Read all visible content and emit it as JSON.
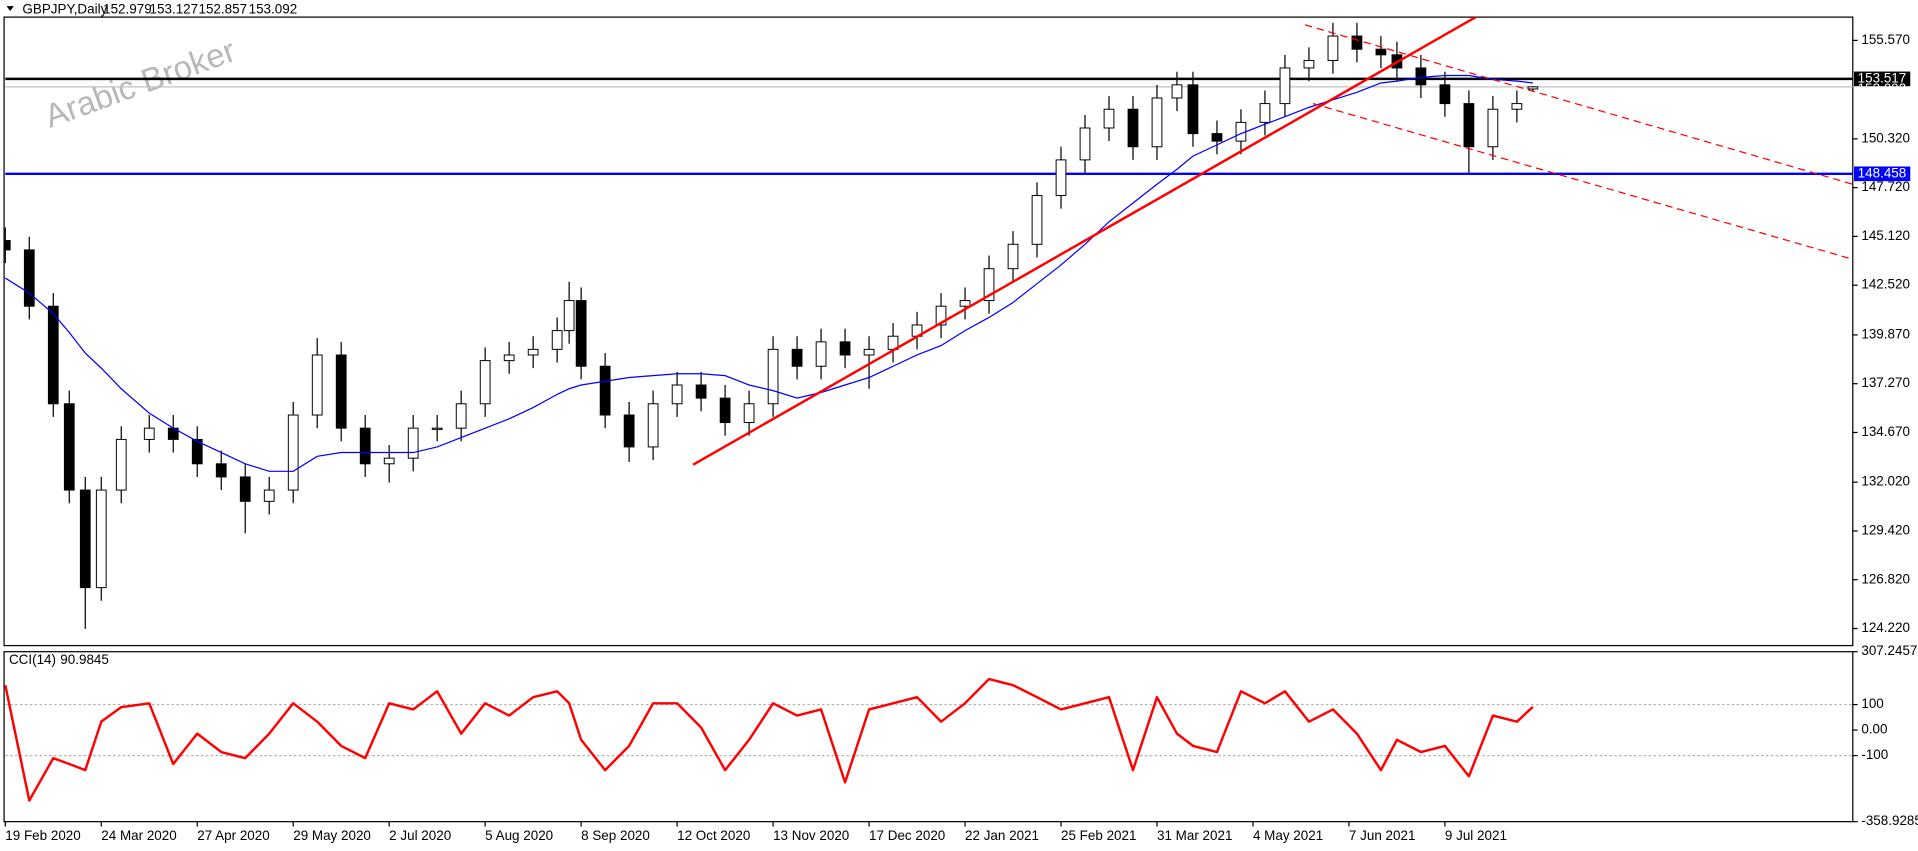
{
  "chart_data": [
    {
      "type": "candlestick",
      "title": "GBPJPY,Daily",
      "watermark": "Arabic Broker",
      "x": [
        0,
        6,
        12,
        16,
        20,
        24,
        29,
        36,
        42,
        48,
        54,
        60,
        66,
        72,
        78,
        84,
        90,
        96,
        102,
        108,
        114,
        120,
        126,
        132,
        138,
        141,
        144,
        150,
        156,
        162,
        168,
        174,
        180,
        186,
        192,
        198,
        204,
        210,
        216,
        222,
        228,
        234,
        240,
        246,
        252,
        258,
        264,
        270,
        276,
        282,
        288,
        293,
        297,
        303,
        309,
        315,
        320,
        326,
        332,
        338,
        344,
        348,
        354,
        360,
        366,
        372,
        378,
        382
      ],
      "open": [
        144.9,
        144.4,
        141.4,
        136.2,
        131.6,
        126.4,
        131.6,
        134.3,
        134.9,
        134.3,
        133.0,
        132.3,
        131.0,
        131.6,
        135.6,
        138.8,
        134.9,
        133.0,
        133.3,
        134.9,
        134.9,
        136.2,
        138.5,
        138.8,
        139.1,
        140.1,
        141.7,
        138.2,
        135.6,
        133.9,
        136.2,
        137.2,
        136.5,
        135.2,
        136.2,
        139.1,
        138.2,
        139.5,
        138.8,
        139.1,
        139.8,
        140.4,
        141.4,
        141.7,
        143.4,
        144.7,
        147.3,
        149.2,
        150.9,
        151.9,
        149.9,
        152.5,
        153.2,
        150.6,
        150.2,
        151.2,
        152.2,
        154.1,
        154.5,
        155.8,
        155.1,
        154.8,
        154.1,
        153.2,
        152.2,
        149.9,
        151.9,
        152.979
      ],
      "high": [
        145.6,
        145.1,
        142.1,
        136.9,
        132.3,
        132.3,
        135.0,
        135.6,
        135.6,
        135.0,
        133.7,
        133.0,
        132.3,
        136.3,
        139.7,
        139.5,
        135.6,
        134.0,
        135.6,
        135.6,
        136.9,
        139.2,
        139.5,
        139.8,
        140.8,
        142.7,
        142.4,
        138.9,
        136.3,
        136.9,
        137.9,
        137.9,
        137.2,
        136.9,
        139.8,
        139.8,
        140.2,
        140.2,
        139.8,
        140.5,
        141.1,
        142.1,
        142.4,
        144.1,
        145.4,
        148.0,
        149.9,
        151.6,
        152.6,
        152.6,
        153.2,
        153.9,
        153.9,
        151.3,
        151.9,
        152.9,
        154.8,
        155.2,
        156.5,
        156.5,
        155.8,
        155.5,
        154.8,
        153.9,
        152.9,
        152.6,
        152.9,
        153.127
      ],
      "low": [
        143.7,
        140.7,
        135.5,
        130.9,
        124.2,
        125.7,
        130.9,
        133.6,
        133.6,
        132.3,
        131.6,
        129.3,
        130.3,
        130.9,
        134.9,
        134.2,
        132.3,
        132.0,
        132.6,
        134.2,
        134.2,
        135.5,
        137.8,
        138.1,
        138.4,
        139.4,
        137.5,
        134.9,
        133.1,
        133.2,
        135.5,
        135.8,
        134.5,
        134.5,
        135.5,
        137.5,
        137.5,
        138.1,
        137.0,
        138.4,
        139.1,
        139.7,
        140.7,
        141.0,
        142.7,
        144.0,
        146.6,
        148.5,
        150.2,
        149.2,
        149.2,
        151.8,
        149.9,
        149.5,
        149.5,
        150.5,
        151.5,
        153.4,
        153.8,
        154.4,
        154.1,
        153.4,
        152.5,
        151.5,
        148.5,
        149.2,
        151.2,
        152.857
      ],
      "close": [
        144.4,
        141.4,
        136.2,
        131.6,
        126.4,
        131.6,
        134.3,
        134.9,
        134.3,
        133.0,
        132.3,
        131.0,
        131.6,
        135.6,
        138.8,
        134.9,
        133.0,
        133.3,
        134.9,
        134.9,
        136.2,
        138.5,
        138.8,
        139.1,
        140.1,
        141.7,
        138.2,
        135.6,
        133.9,
        136.2,
        137.2,
        136.5,
        135.2,
        136.2,
        139.1,
        138.2,
        139.5,
        138.8,
        139.1,
        139.8,
        140.4,
        141.4,
        141.7,
        143.4,
        144.7,
        147.3,
        149.2,
        150.9,
        151.9,
        149.9,
        152.5,
        153.2,
        150.6,
        150.2,
        151.2,
        152.2,
        154.1,
        154.5,
        155.8,
        155.1,
        154.8,
        154.1,
        153.2,
        152.2,
        149.9,
        151.9,
        152.2,
        153.092
      ],
      "ma": {
        "color": "#0000ff",
        "values": [
          142.9,
          142.1,
          141.0,
          140.0,
          138.9,
          138.1,
          137.0,
          135.7,
          134.9,
          134.2,
          133.6,
          133.0,
          132.6,
          132.6,
          133.4,
          133.6,
          133.6,
          133.6,
          133.6,
          133.9,
          134.4,
          134.9,
          135.4,
          136.0,
          136.7,
          137.0,
          137.2,
          137.4,
          137.6,
          137.7,
          137.8,
          137.8,
          137.7,
          137.2,
          136.9,
          136.5,
          136.8,
          137.2,
          137.6,
          138.2,
          138.8,
          139.3,
          140.1,
          140.8,
          141.6,
          142.6,
          143.6,
          144.7,
          145.9,
          146.9,
          147.9,
          148.7,
          149.4,
          150.0,
          150.6,
          151.1,
          151.5,
          152.0,
          152.4,
          152.8,
          153.3,
          153.4,
          153.6,
          153.7,
          153.7,
          153.5,
          153.4,
          153.3
        ]
      },
      "up_color": "#ffffff",
      "down_color": "#000000",
      "xlim": [
        0,
        462
      ],
      "xticks": [
        {
          "value": 0,
          "label": "19 Feb 2020"
        },
        {
          "value": 24,
          "label": "24 Mar 2020"
        },
        {
          "value": 48,
          "label": "27 Apr 2020"
        },
        {
          "value": 72,
          "label": "29 May 2020"
        },
        {
          "value": 96,
          "label": "2 Jul 2020"
        },
        {
          "value": 120,
          "label": "5 Aug 2020"
        },
        {
          "value": 144,
          "label": "8 Sep 2020"
        },
        {
          "value": 168,
          "label": "12 Oct 2020"
        },
        {
          "value": 192,
          "label": "13 Nov 2020"
        },
        {
          "value": 216,
          "label": "17 Dec 2020"
        },
        {
          "value": 240,
          "label": "22 Jan 2021"
        },
        {
          "value": 264,
          "label": "25 Feb 2021"
        },
        {
          "value": 288,
          "label": "31 Mar 2021"
        },
        {
          "value": 312,
          "label": "4 May 2021"
        },
        {
          "value": 336,
          "label": "7 Jun 2021"
        },
        {
          "value": 360,
          "label": "9 Jul 2021"
        }
      ],
      "ylim": [
        123.31,
        156.81
      ],
      "yticks": [
        {
          "value": 155.57,
          "label": "155.570"
        },
        {
          "value": 150.32,
          "label": "150.320"
        },
        {
          "value": 147.72,
          "label": "147.720"
        },
        {
          "value": 145.12,
          "label": "145.120"
        },
        {
          "value": 142.52,
          "label": "142.520"
        },
        {
          "value": 139.87,
          "label": "139.870"
        },
        {
          "value": 137.27,
          "label": "137.270"
        },
        {
          "value": 134.67,
          "label": "134.670"
        },
        {
          "value": 132.02,
          "label": "132.020"
        },
        {
          "value": 129.42,
          "label": "129.420"
        },
        {
          "value": 126.82,
          "label": "126.820"
        },
        {
          "value": 124.22,
          "label": "124.220"
        }
      ],
      "hlines": [
        {
          "value": 153.517,
          "color": "#000000"
        },
        {
          "value": 148.458,
          "color": "#0000ff"
        }
      ],
      "trendlines": [
        {
          "x1": 172,
          "y1": 132.95,
          "x2": 375,
          "y2": 157.7,
          "color": "#ff0000",
          "dashed": false
        },
        {
          "x1": 325,
          "y1": 156.4,
          "x2": 462,
          "y2": 147.9,
          "color": "#ff0000",
          "dashed": true
        },
        {
          "x1": 327,
          "y1": 152.2,
          "x2": 462,
          "y2": 143.9,
          "color": "#ff0000",
          "dashed": true
        }
      ]
    },
    {
      "type": "line",
      "title": "CCI(14)",
      "color": "#ff0000",
      "x": [
        0,
        6,
        12,
        16,
        20,
        24,
        29,
        36,
        42,
        48,
        54,
        60,
        66,
        72,
        78,
        84,
        90,
        96,
        102,
        108,
        114,
        120,
        126,
        132,
        138,
        141,
        144,
        150,
        156,
        162,
        168,
        174,
        180,
        186,
        192,
        198,
        204,
        210,
        216,
        222,
        228,
        234,
        240,
        246,
        252,
        258,
        264,
        270,
        276,
        282,
        288,
        293,
        297,
        303,
        309,
        315,
        320,
        326,
        332,
        338,
        344,
        348,
        354,
        360,
        366,
        372,
        378,
        382
      ],
      "values": [
        176,
        -276,
        -110,
        -133,
        -157,
        33,
        90,
        105,
        -133,
        -14,
        -86,
        -110,
        -14,
        105,
        33,
        -62,
        -110,
        105,
        81,
        152,
        -14,
        105,
        57,
        129,
        152,
        105,
        -38,
        -157,
        -62,
        105,
        105,
        10,
        -157,
        -38,
        105,
        57,
        81,
        -205,
        81,
        105,
        129,
        33,
        105,
        200,
        176,
        129,
        81,
        105,
        129,
        -157,
        129,
        -14,
        -62,
        -86,
        152,
        105,
        152,
        33,
        81,
        -14,
        -157,
        -38,
        -86,
        -62,
        -181,
        57,
        33,
        90.9845
      ],
      "xlim": [
        0,
        462
      ],
      "ylim": [
        -358.9285,
        307.2457
      ],
      "yticks": [
        307.2457,
        100,
        {
          "value": 0,
          "label": "0.00"
        },
        -100,
        -358.9285
      ],
      "levels": [
        100,
        -100
      ]
    }
  ]
}
